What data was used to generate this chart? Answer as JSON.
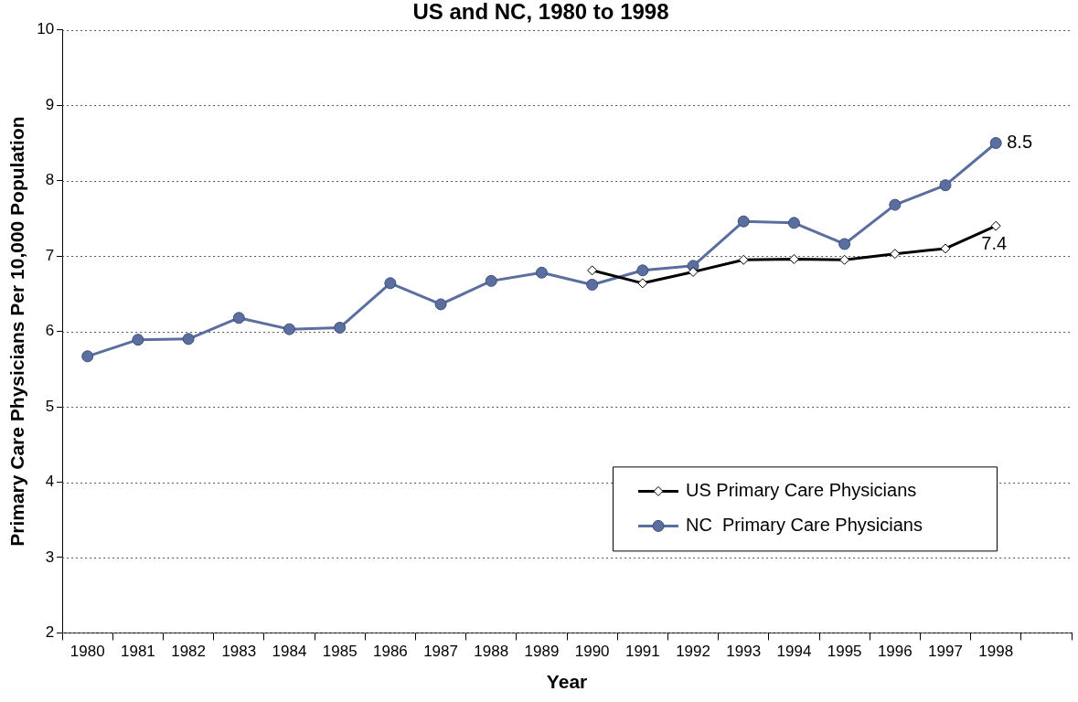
{
  "chart_data": {
    "type": "line",
    "title": "US and NC, 1980 to 1998",
    "xlabel": "Year",
    "ylabel": "Primary Care Physicians Per 10,000 Population",
    "categories": [
      "1980",
      "1981",
      "1982",
      "1983",
      "1984",
      "1985",
      "1986",
      "1987",
      "1988",
      "1989",
      "1990",
      "1991",
      "1992",
      "1993",
      "1994",
      "1995",
      "1996",
      "1997",
      "1998",
      null
    ],
    "series": [
      {
        "name": "US Primary Care Physicians",
        "color": "#000000",
        "marker": "diamond",
        "values": [
          null,
          null,
          null,
          null,
          null,
          null,
          null,
          null,
          null,
          null,
          6.81,
          6.64,
          6.79,
          6.95,
          6.96,
          6.95,
          7.03,
          7.1,
          7.4,
          null
        ],
        "value_labels": [
          null,
          null,
          null,
          null,
          null,
          null,
          null,
          null,
          null,
          null,
          null,
          null,
          null,
          null,
          null,
          null,
          null,
          null,
          "7.4",
          null
        ]
      },
      {
        "name": "NC  Primary Care Physicians",
        "color": "#5a6e9f",
        "marker": "circle",
        "values": [
          5.67,
          5.89,
          5.9,
          6.18,
          6.03,
          6.05,
          6.64,
          6.36,
          6.67,
          6.78,
          6.62,
          6.81,
          6.87,
          7.46,
          7.44,
          7.16,
          7.68,
          7.94,
          8.5,
          null
        ],
        "value_labels": [
          null,
          null,
          null,
          null,
          null,
          null,
          null,
          null,
          null,
          null,
          null,
          null,
          null,
          null,
          null,
          null,
          null,
          null,
          "8.5",
          null
        ]
      }
    ],
    "ylim": [
      2,
      10
    ],
    "yticks": [
      2,
      3,
      4,
      5,
      6,
      7,
      8,
      9,
      10
    ],
    "grid": "y",
    "legend": "bottom right"
  }
}
